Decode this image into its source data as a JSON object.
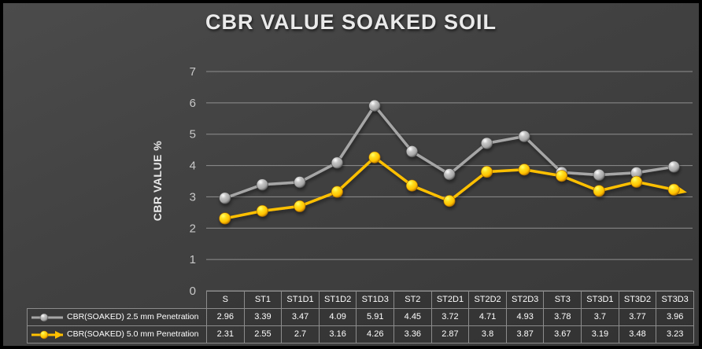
{
  "title": "CBR VALUE SOAKED SOIL",
  "ylabel": "CBR VALUE %",
  "colors": {
    "background": "#414141",
    "title_text": "#eaeaea",
    "grid": "#8f8f8f",
    "axis_text": "#c8c8c8",
    "table_border": "#8c8c8c",
    "table_text": "#ffffff"
  },
  "chart_data": {
    "type": "line",
    "title": "CBR VALUE SOAKED SOIL",
    "xlabel": "",
    "ylabel": "CBR VALUE %",
    "ylim": [
      0,
      7
    ],
    "yticks": [
      0,
      1,
      2,
      3,
      4,
      5,
      6,
      7
    ],
    "grid": true,
    "legend_position": "table-left",
    "categories": [
      "S",
      "ST1",
      "ST1D1",
      "ST1D2",
      "ST1D3",
      "ST2",
      "ST2D1",
      "ST2D2",
      "ST2D3",
      "ST3",
      "ST3D1",
      "ST3D2",
      "ST3D3"
    ],
    "series": [
      {
        "name": "CBR(SOAKED) 2.5 mm Penetration",
        "color": "#a6a6a6",
        "end_arrow": false,
        "values": [
          2.96,
          3.39,
          3.47,
          4.09,
          5.91,
          4.45,
          3.72,
          4.71,
          4.93,
          3.78,
          3.7,
          3.77,
          3.96
        ]
      },
      {
        "name": "CBR(SOAKED) 5.0 mm Penetration",
        "color": "#ffc000",
        "end_arrow": true,
        "values": [
          2.31,
          2.55,
          2.7,
          3.16,
          4.26,
          3.36,
          2.87,
          3.8,
          3.87,
          3.67,
          3.19,
          3.48,
          3.23
        ]
      }
    ]
  }
}
